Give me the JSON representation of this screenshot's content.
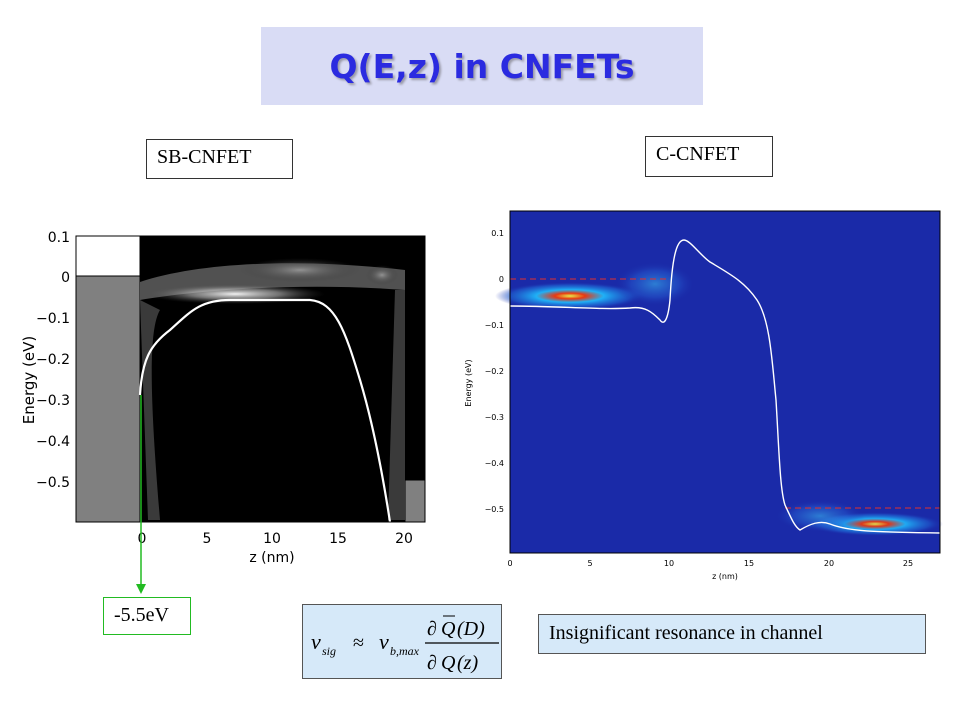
{
  "title": "Q(E,z) in CNFETs",
  "labels": {
    "sb_cnfet": "SB-CNFET",
    "c_cnfet": "C-CNFET",
    "energy_marker": "-5.5eV",
    "resonance_note": "Insignificant resonance in channel"
  },
  "left_plot": {
    "ylabel": "Energy (eV)",
    "xlabel": "z (nm)",
    "yticks": [
      "0.1",
      "0",
      "−0.1",
      "−0.2",
      "−0.3",
      "−0.4",
      "−0.5"
    ],
    "xticks": [
      "0",
      "5",
      "10",
      "15",
      "20"
    ]
  },
  "right_plot": {
    "ylabel": "Energy (eV)",
    "xlabel": "z (nm)",
    "yticks": [
      "0.1",
      "0",
      "−0.1",
      "−0.2",
      "−0.3",
      "−0.4",
      "−0.5"
    ],
    "xticks": [
      "0",
      "5",
      "10",
      "15",
      "20",
      "25"
    ]
  },
  "formula": {
    "lhs": "v",
    "lhs_sub": "sig",
    "approx": "≈",
    "rhs": "v",
    "rhs_sub": "b,max",
    "num_partial": "∂",
    "num_q": "Q",
    "num_arg": "(D)",
    "den_partial": "∂",
    "den_q": "Q",
    "den_arg": "(z)"
  },
  "colors": {
    "title_bg": "#d9dcf5",
    "title_text": "#2b2be0",
    "marker_green": "#22bb22",
    "formula_bg": "#d6e9f9",
    "plot_blue": "#1a2aa8",
    "fermi_red": "#e03030"
  }
}
